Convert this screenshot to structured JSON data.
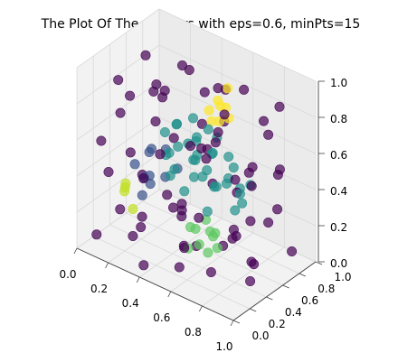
{
  "chart_data": {
    "type": "scatter",
    "projection": "3d",
    "title": "The Plot Of The Clusters with eps=0.6, minPts=15",
    "xlabel": "",
    "ylabel": "",
    "zlabel": "",
    "xlim": [
      0.0,
      1.0
    ],
    "ylim": [
      0.0,
      1.0
    ],
    "zlim": [
      0.0,
      1.0
    ],
    "x_ticks": [
      "0.0",
      "0.2",
      "0.4",
      "0.6",
      "0.8",
      "1.0"
    ],
    "y_ticks": [
      "0.0",
      "0.2",
      "0.4",
      "0.6",
      "0.8",
      "1.0"
    ],
    "z_ticks": [
      "0.0",
      "0.2",
      "0.4",
      "0.6",
      "0.8",
      "1.0"
    ],
    "grid": true,
    "legend": "none",
    "colormap": "viridis",
    "series": [
      {
        "color": "#440154",
        "points": [
          [
            0.05,
            0.2,
            0.55
          ],
          [
            0.1,
            0.85,
            0.6
          ],
          [
            0.08,
            0.5,
            0.4
          ],
          [
            0.12,
            0.3,
            0.7
          ],
          [
            0.15,
            0.1,
            0.45
          ],
          [
            0.2,
            0.9,
            0.8
          ],
          [
            0.22,
            0.65,
            0.75
          ],
          [
            0.25,
            0.05,
            0.3
          ],
          [
            0.28,
            0.4,
            0.85
          ],
          [
            0.3,
            0.95,
            0.5
          ],
          [
            0.33,
            0.15,
            0.2
          ],
          [
            0.35,
            0.7,
            0.9
          ],
          [
            0.38,
            0.55,
            0.15
          ],
          [
            0.4,
            0.25,
            0.6
          ],
          [
            0.42,
            0.85,
            0.25
          ],
          [
            0.45,
            0.1,
            0.85
          ],
          [
            0.48,
            0.6,
            0.55
          ],
          [
            0.5,
            0.35,
            0.1
          ],
          [
            0.52,
            0.8,
            0.65
          ],
          [
            0.55,
            0.05,
            0.5
          ],
          [
            0.58,
            0.45,
            0.95
          ],
          [
            0.6,
            0.95,
            0.35
          ],
          [
            0.62,
            0.2,
            0.75
          ],
          [
            0.65,
            0.7,
            0.1
          ],
          [
            0.68,
            0.5,
            0.85
          ],
          [
            0.7,
            0.15,
            0.4
          ],
          [
            0.72,
            0.9,
            0.7
          ],
          [
            0.75,
            0.35,
            0.2
          ],
          [
            0.78,
            0.65,
            0.55
          ],
          [
            0.8,
            0.05,
            0.8
          ],
          [
            0.82,
            0.55,
            0.3
          ],
          [
            0.85,
            0.85,
            0.5
          ],
          [
            0.88,
            0.25,
            0.65
          ],
          [
            0.9,
            0.75,
            0.9
          ],
          [
            0.92,
            0.4,
            0.15
          ],
          [
            0.95,
            0.1,
            0.45
          ],
          [
            0.97,
            0.6,
            0.6
          ],
          [
            0.15,
            0.55,
            0.95
          ],
          [
            0.25,
            0.8,
            0.05
          ],
          [
            0.35,
            0.3,
            0.95
          ],
          [
            0.45,
            0.95,
            0.75
          ],
          [
            0.55,
            0.2,
            0.05
          ],
          [
            0.65,
            0.45,
            0.7
          ],
          [
            0.75,
            0.9,
            0.15
          ],
          [
            0.85,
            0.1,
            0.95
          ],
          [
            0.1,
            0.05,
            0.1
          ],
          [
            0.2,
            0.3,
            0.05
          ],
          [
            0.3,
            0.6,
            0.15
          ],
          [
            0.4,
            0.05,
            0.05
          ],
          [
            0.5,
            0.5,
            0.05
          ],
          [
            0.6,
            0.75,
            0.05
          ],
          [
            0.7,
            0.3,
            0.05
          ],
          [
            0.8,
            0.6,
            0.05
          ],
          [
            0.9,
            0.9,
            0.05
          ],
          [
            0.95,
            0.3,
            0.1
          ],
          [
            0.05,
            0.7,
            0.2
          ],
          [
            0.12,
            0.95,
            0.35
          ],
          [
            0.18,
            0.45,
            0.1
          ],
          [
            0.26,
            0.15,
            0.9
          ],
          [
            0.36,
            0.9,
            0.4
          ],
          [
            0.46,
            0.4,
            0.3
          ],
          [
            0.56,
            0.65,
            0.9
          ],
          [
            0.66,
            0.05,
            0.25
          ],
          [
            0.76,
            0.5,
            0.45
          ],
          [
            0.86,
            0.8,
            0.3
          ],
          [
            0.96,
            0.5,
            0.85
          ],
          [
            0.08,
            0.35,
            0.85
          ],
          [
            0.32,
            0.2,
            0.45
          ],
          [
            0.62,
            0.85,
            0.85
          ],
          [
            0.88,
            0.45,
            0.55
          ]
        ]
      },
      {
        "color": "#21918c",
        "points": [
          [
            0.3,
            0.5,
            0.6
          ],
          [
            0.35,
            0.55,
            0.65
          ],
          [
            0.4,
            0.45,
            0.7
          ],
          [
            0.45,
            0.6,
            0.6
          ],
          [
            0.5,
            0.4,
            0.65
          ],
          [
            0.55,
            0.55,
            0.7
          ],
          [
            0.6,
            0.5,
            0.6
          ],
          [
            0.38,
            0.4,
            0.55
          ],
          [
            0.42,
            0.65,
            0.55
          ],
          [
            0.48,
            0.5,
            0.75
          ],
          [
            0.52,
            0.45,
            0.55
          ],
          [
            0.58,
            0.6,
            0.65
          ],
          [
            0.62,
            0.4,
            0.55
          ],
          [
            0.68,
            0.55,
            0.6
          ],
          [
            0.72,
            0.45,
            0.5
          ],
          [
            0.33,
            0.6,
            0.5
          ],
          [
            0.44,
            0.35,
            0.5
          ],
          [
            0.56,
            0.35,
            0.6
          ],
          [
            0.66,
            0.65,
            0.5
          ],
          [
            0.78,
            0.5,
            0.45
          ],
          [
            0.4,
            0.7,
            0.45
          ],
          [
            0.5,
            0.7,
            0.5
          ],
          [
            0.6,
            0.7,
            0.4
          ],
          [
            0.7,
            0.65,
            0.4
          ],
          [
            0.8,
            0.4,
            0.4
          ],
          [
            0.36,
            0.45,
            0.4
          ],
          [
            0.46,
            0.55,
            0.4
          ],
          [
            0.54,
            0.5,
            0.45
          ],
          [
            0.64,
            0.45,
            0.45
          ],
          [
            0.74,
            0.6,
            0.35
          ],
          [
            0.28,
            0.55,
            0.45
          ],
          [
            0.82,
            0.55,
            0.5
          ],
          [
            0.65,
            0.35,
            0.35
          ],
          [
            0.55,
            0.65,
            0.35
          ],
          [
            0.45,
            0.45,
            0.35
          ]
        ]
      },
      {
        "color": "#3b528b",
        "points": [
          [
            0.2,
            0.5,
            0.45
          ],
          [
            0.22,
            0.4,
            0.35
          ],
          [
            0.25,
            0.6,
            0.3
          ],
          [
            0.18,
            0.55,
            0.25
          ],
          [
            0.24,
            0.45,
            0.5
          ],
          [
            0.16,
            0.4,
            0.4
          ],
          [
            0.28,
            0.35,
            0.4
          ],
          [
            0.3,
            0.65,
            0.35
          ],
          [
            0.2,
            0.7,
            0.4
          ],
          [
            0.26,
            0.3,
            0.3
          ]
        ]
      },
      {
        "color": "#5ec962",
        "points": [
          [
            0.6,
            0.3,
            0.25
          ],
          [
            0.65,
            0.25,
            0.2
          ],
          [
            0.7,
            0.35,
            0.25
          ],
          [
            0.62,
            0.2,
            0.3
          ],
          [
            0.68,
            0.3,
            0.15
          ],
          [
            0.72,
            0.25,
            0.3
          ],
          [
            0.58,
            0.25,
            0.15
          ],
          [
            0.66,
            0.4,
            0.2
          ],
          [
            0.74,
            0.3,
            0.2
          ],
          [
            0.64,
            0.35,
            0.3
          ]
        ]
      },
      {
        "color": "#fde725",
        "points": [
          [
            0.45,
            0.75,
            0.7
          ],
          [
            0.48,
            0.8,
            0.75
          ],
          [
            0.5,
            0.78,
            0.65
          ],
          [
            0.47,
            0.85,
            0.7
          ],
          [
            0.52,
            0.82,
            0.72
          ],
          [
            0.44,
            0.8,
            0.62
          ],
          [
            0.5,
            0.88,
            0.8
          ],
          [
            0.55,
            0.8,
            0.68
          ]
        ]
      },
      {
        "color": "#c2df23",
        "points": [
          [
            0.15,
            0.3,
            0.3
          ],
          [
            0.18,
            0.25,
            0.35
          ],
          [
            0.12,
            0.35,
            0.25
          ],
          [
            0.2,
            0.3,
            0.2
          ]
        ]
      }
    ]
  }
}
